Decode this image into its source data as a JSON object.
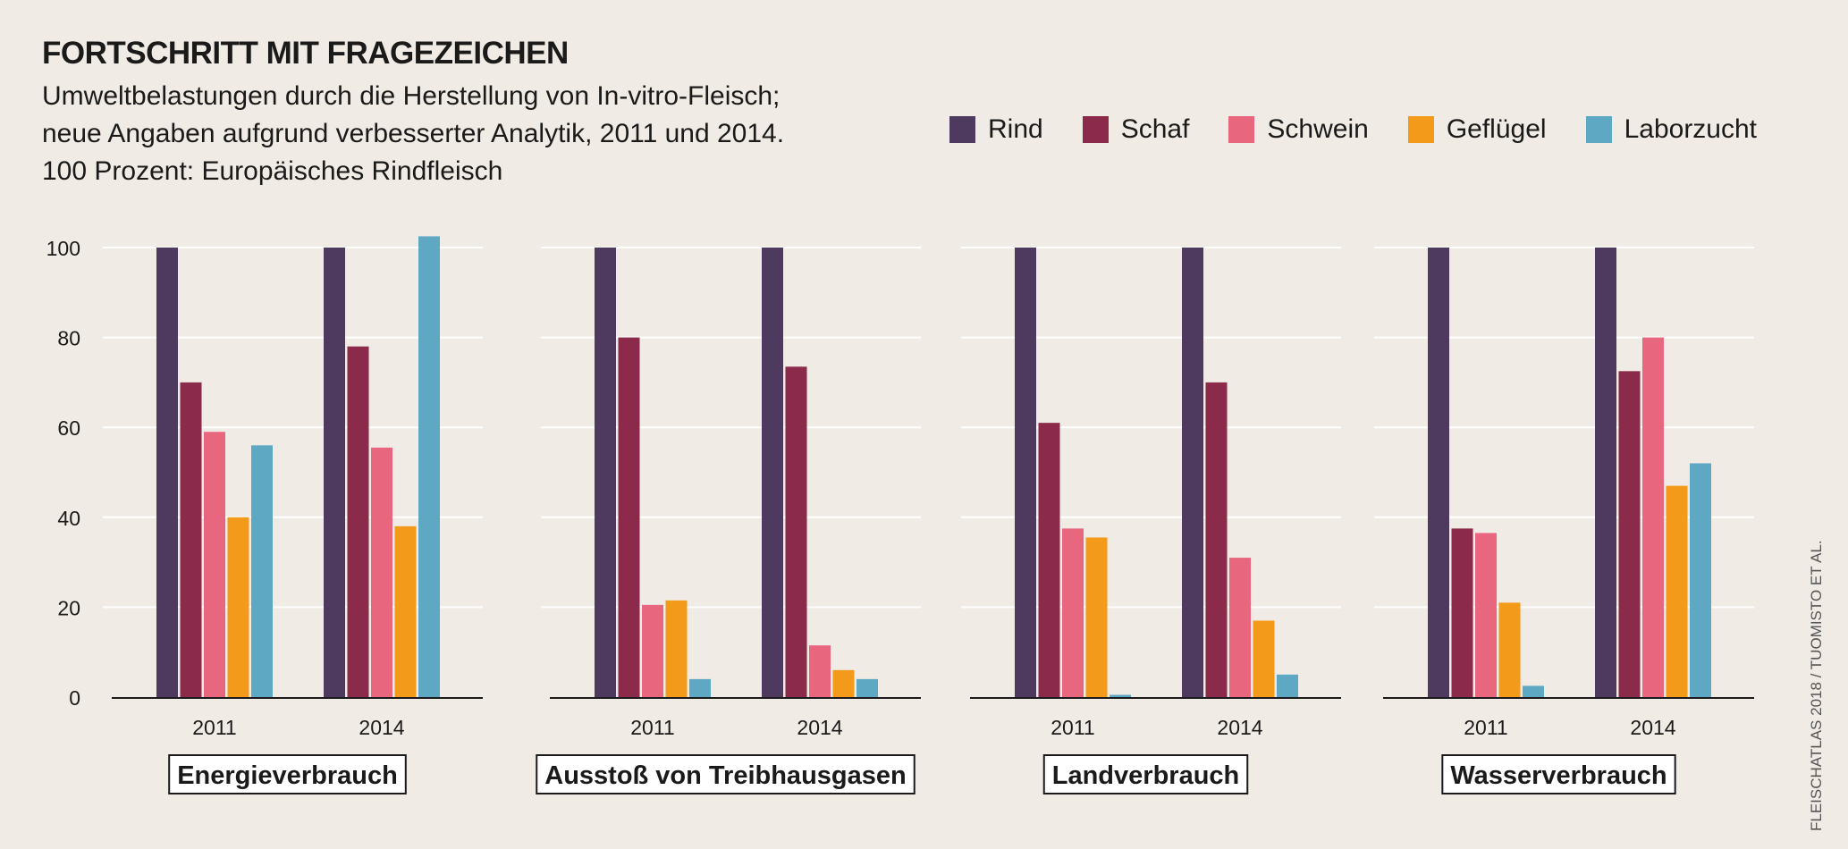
{
  "header": {
    "title": "FORTSCHRITT MIT FRAGEZEICHEN",
    "subtitle_lines": [
      "Umweltbelastungen durch die Herstellung von In-vitro-Fleisch;",
      "neue Angaben aufgrund verbesserter Analytik, 2011 und 2014.",
      "100 Prozent: Europäisches Rindfleisch"
    ]
  },
  "source": "FLEISCHATLAS 2018 / TUOMISTO ET AL.",
  "colors": {
    "Rind": "#4e3a5e",
    "Schaf": "#8b2a4a",
    "Schwein": "#e8677f",
    "Geflügel": "#f39a1b",
    "Laborzucht": "#5fa8c4",
    "gridline": "#ffffff",
    "axis": "#1a1a1a"
  },
  "legend": [
    {
      "name": "Rind",
      "color": "#4e3a5e"
    },
    {
      "name": "Schaf",
      "color": "#8b2a4a"
    },
    {
      "name": "Schwein",
      "color": "#e8677f"
    },
    {
      "name": "Geflügel",
      "color": "#f39a1b"
    },
    {
      "name": "Laborzucht",
      "color": "#5fa8c4"
    }
  ],
  "chart_data": [
    {
      "type": "bar",
      "title": "Energieverbrauch",
      "categories": [
        "2011",
        "2014"
      ],
      "ylim": [
        0,
        100
      ],
      "yticks": [
        0,
        20,
        40,
        60,
        80,
        100
      ],
      "grid": true,
      "series": [
        {
          "name": "Rind",
          "values": [
            100,
            100
          ]
        },
        {
          "name": "Schaf",
          "values": [
            70,
            78
          ]
        },
        {
          "name": "Schwein",
          "values": [
            59,
            55.5
          ]
        },
        {
          "name": "Geflügel",
          "values": [
            40,
            38
          ]
        },
        {
          "name": "Laborzucht",
          "values": [
            56,
            102.5
          ]
        }
      ]
    },
    {
      "type": "bar",
      "title": "Ausstoß von Treibhausgasen",
      "categories": [
        "2011",
        "2014"
      ],
      "ylim": [
        0,
        100
      ],
      "grid": true,
      "series": [
        {
          "name": "Rind",
          "values": [
            100,
            100
          ]
        },
        {
          "name": "Schaf",
          "values": [
            80,
            73.5
          ]
        },
        {
          "name": "Schwein",
          "values": [
            20.5,
            11.5
          ]
        },
        {
          "name": "Geflügel",
          "values": [
            21.5,
            6
          ]
        },
        {
          "name": "Laborzucht",
          "values": [
            4,
            4
          ]
        }
      ]
    },
    {
      "type": "bar",
      "title": "Landverbrauch",
      "categories": [
        "2011",
        "2014"
      ],
      "ylim": [
        0,
        100
      ],
      "grid": true,
      "series": [
        {
          "name": "Rind",
          "values": [
            100,
            100
          ]
        },
        {
          "name": "Schaf",
          "values": [
            61,
            70
          ]
        },
        {
          "name": "Schwein",
          "values": [
            37.5,
            31
          ]
        },
        {
          "name": "Geflügel",
          "values": [
            35.5,
            17
          ]
        },
        {
          "name": "Laborzucht",
          "values": [
            0.5,
            5
          ]
        }
      ]
    },
    {
      "type": "bar",
      "title": "Wasserverbrauch",
      "categories": [
        "2011",
        "2014"
      ],
      "ylim": [
        0,
        100
      ],
      "grid": true,
      "series": [
        {
          "name": "Rind",
          "values": [
            100,
            100
          ]
        },
        {
          "name": "Schaf",
          "values": [
            37.5,
            72.5
          ]
        },
        {
          "name": "Schwein",
          "values": [
            36.5,
            80
          ]
        },
        {
          "name": "Geflügel",
          "values": [
            21,
            47
          ]
        },
        {
          "name": "Laborzucht",
          "values": [
            2.5,
            52
          ]
        }
      ]
    }
  ]
}
